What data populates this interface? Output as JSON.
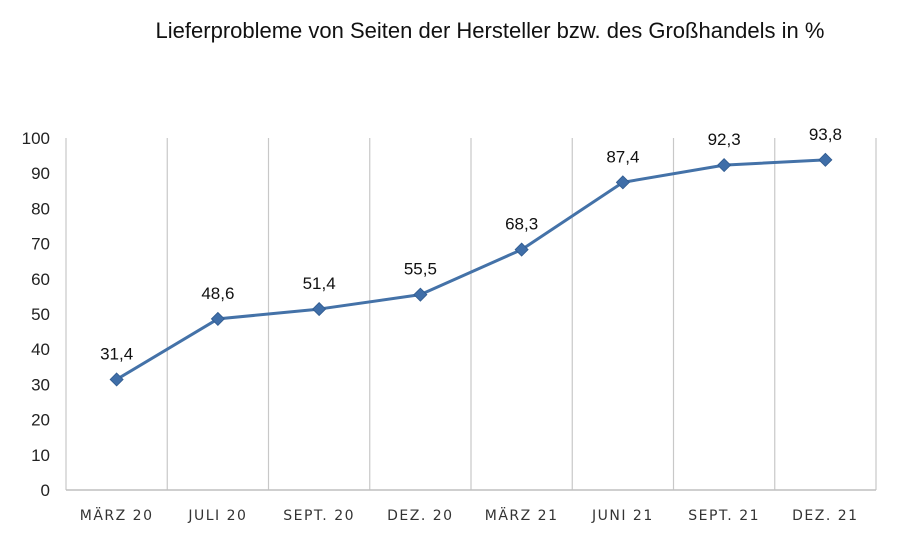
{
  "chart_data": {
    "type": "line",
    "title": "Lieferprobleme von Seiten der Hersteller bzw. des Großhandels in %",
    "categories": [
      "MÄRZ 20",
      "JULI 20",
      "SEPT. 20",
      "DEZ. 20",
      "MÄRZ 21",
      "JUNI 21",
      "SEPT. 21",
      "DEZ. 21"
    ],
    "series": [
      {
        "values": [
          31.4,
          48.6,
          51.4,
          55.5,
          68.3,
          87.4,
          92.3,
          93.8
        ]
      }
    ],
    "data_labels": [
      "31,4",
      "48,6",
      "51,4",
      "55,5",
      "68,3",
      "87,4",
      "92,3",
      "93,8"
    ],
    "y_ticks": [
      "0",
      "10",
      "20",
      "30",
      "40",
      "50",
      "60",
      "70",
      "80",
      "90",
      "100"
    ],
    "ylim": [
      0,
      100
    ],
    "grid": "vertical",
    "marker": "diamond",
    "colors": {
      "line": "#4472a8",
      "marker": "#3f6ea8",
      "grid": "#c8c8c8",
      "axis": "#bfbfbf"
    }
  }
}
